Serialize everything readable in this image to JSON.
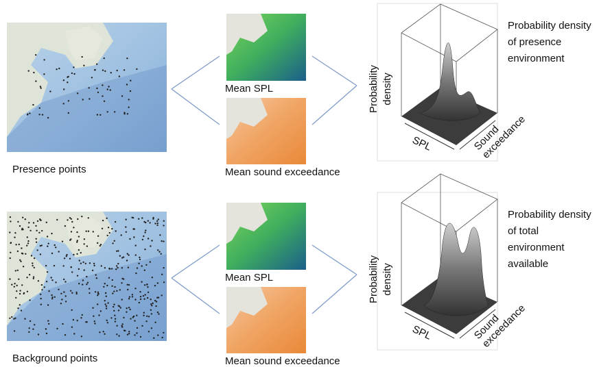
{
  "rows": [
    {
      "points_label": "Presence points",
      "layers": [
        {
          "label": "Mean SPL"
        },
        {
          "label": "Mean sound exceedance"
        }
      ],
      "plot": {
        "y_label": [
          "Probability",
          "density"
        ],
        "x_label": "SPL",
        "z_label": [
          "Sound",
          "exceedance"
        ]
      },
      "description": [
        "Probability density",
        "of presence",
        "environment"
      ]
    },
    {
      "points_label": "Background points",
      "layers": [
        {
          "label": "Mean SPL"
        },
        {
          "label": "Mean sound exceedance"
        }
      ],
      "plot": {
        "y_label": [
          "Probability",
          "density"
        ],
        "x_label": "SPL",
        "z_label": [
          "Sound",
          "exceedance"
        ]
      },
      "description": [
        "Probability density",
        "of total",
        "environment",
        "available"
      ]
    }
  ]
}
